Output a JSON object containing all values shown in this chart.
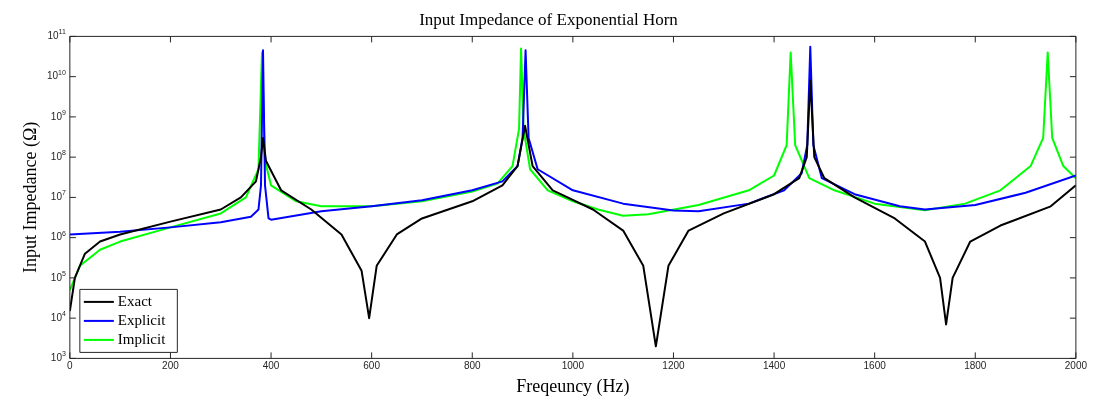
{
  "chart_data": {
    "type": "line",
    "title": "Input Impedance of Exponential Horn",
    "xlabel": "Freqeuncy (Hz)",
    "ylabel": "Input Impedance (Ω)",
    "xlim": [
      0,
      2000
    ],
    "xticks": [
      0,
      200,
      400,
      600,
      800,
      1000,
      1200,
      1400,
      1600,
      1800,
      2000
    ],
    "ylim": [
      1000,
      100000000000
    ],
    "yticks": [
      {
        "value": 1000,
        "label": "10$^{3}$"
      },
      {
        "value": 10000,
        "label": "10$^{4}$"
      },
      {
        "value": 100000,
        "label": "10$^{5}$"
      },
      {
        "value": 1000000,
        "label": "10$^{6}$"
      },
      {
        "value": 10000000,
        "label": "10$^{7}$"
      },
      {
        "value": 100000000,
        "label": "10$^{8}$"
      },
      {
        "value": 1000000000,
        "label": "10$^{9}$"
      },
      {
        "value": 10000000000,
        "label": "10$^{10}$"
      },
      {
        "value": 100000000000,
        "label": "10$^{11}$"
      }
    ],
    "log": "y",
    "grid": false,
    "legend": "bottom left",
    "marker": "none",
    "line_style": "solid",
    "series": [
      {
        "name": "Exact",
        "color": "#000000",
        "x": [
          0,
          10,
          30,
          60,
          100,
          200,
          300,
          340,
          370,
          380,
          384,
          390,
          420,
          480,
          540,
          580,
          595,
          610,
          650,
          700,
          800,
          860,
          890,
          905,
          920,
          960,
          1040,
          1100,
          1140,
          1165,
          1190,
          1230,
          1300,
          1400,
          1450,
          1465,
          1472,
          1480,
          1500,
          1560,
          1640,
          1700,
          1730,
          1742,
          1755,
          1790,
          1850,
          1950,
          2000
        ],
        "values": [
          15000,
          100000,
          400000,
          800000,
          1200000,
          2500000,
          5000000,
          10000000,
          25000000,
          100000000,
          300000000,
          80000000,
          15000000,
          5000000,
          1200000,
          150000,
          10000,
          200000,
          1200000,
          3000000,
          8000000,
          20000000,
          60000000,
          600000000,
          60000000,
          15000000,
          5000000,
          1500000,
          200000,
          2000,
          200000,
          1500000,
          4000000,
          12000000,
          30000000,
          100000000,
          8000000000,
          100000000,
          30000000,
          10000000,
          3000000,
          800000,
          100000,
          7000,
          100000,
          800000,
          2000000,
          6000000,
          20000000
        ]
      },
      {
        "name": "Explicit",
        "color": "#0000ff",
        "x": [
          0,
          100,
          200,
          300,
          360,
          375,
          380,
          384,
          388,
          395,
          400,
          500,
          600,
          700,
          800,
          860,
          890,
          900,
          906,
          912,
          930,
          1000,
          1100,
          1200,
          1250,
          1350,
          1420,
          1455,
          1466,
          1472,
          1478,
          1495,
          1560,
          1650,
          1700,
          1800,
          1900,
          2000
        ],
        "values": [
          1200000,
          1400000,
          1800000,
          2400000,
          3300000,
          5000000,
          20000000,
          45000000000,
          20000000,
          3000000,
          2800000,
          4500000,
          6000000,
          8500000,
          15000000,
          25000000,
          60000000,
          300000000,
          45000000000,
          300000000,
          50000000,
          15000000,
          7000000,
          4700000,
          4500000,
          7000000,
          15000000,
          40000000,
          200000000,
          55000000000,
          200000000,
          30000000,
          12000000,
          6000000,
          5000000,
          6500000,
          13000000,
          35000000
        ]
      },
      {
        "name": "Implicit",
        "color": "#00ff00",
        "x": [
          0,
          20,
          60,
          100,
          200,
          300,
          350,
          375,
          382,
          388,
          400,
          450,
          500,
          600,
          700,
          800,
          850,
          880,
          893,
          897,
          902,
          915,
          950,
          1000,
          1050,
          1100,
          1150,
          1250,
          1350,
          1400,
          1425,
          1433,
          1442,
          1470,
          1520,
          1600,
          1700,
          1780,
          1850,
          1910,
          1935,
          1944,
          1953,
          1975,
          2000
        ],
        "values": [
          50000,
          200000,
          500000,
          800000,
          1800000,
          4000000,
          10000000,
          50000000,
          40000000000,
          80000000,
          20000000,
          8000000,
          6000000,
          6000000,
          8000000,
          14000000,
          22000000,
          60000000,
          500000000,
          50000000000,
          500000000,
          50000000,
          15000000,
          8000000,
          5000000,
          3500000,
          3800000,
          6500000,
          15000000,
          35000000,
          200000000,
          40000000000,
          200000000,
          30000000,
          15000000,
          7000000,
          4800000,
          7000000,
          15000000,
          60000000,
          300000000,
          40000000000,
          300000000,
          60000000,
          30000000
        ]
      }
    ]
  }
}
